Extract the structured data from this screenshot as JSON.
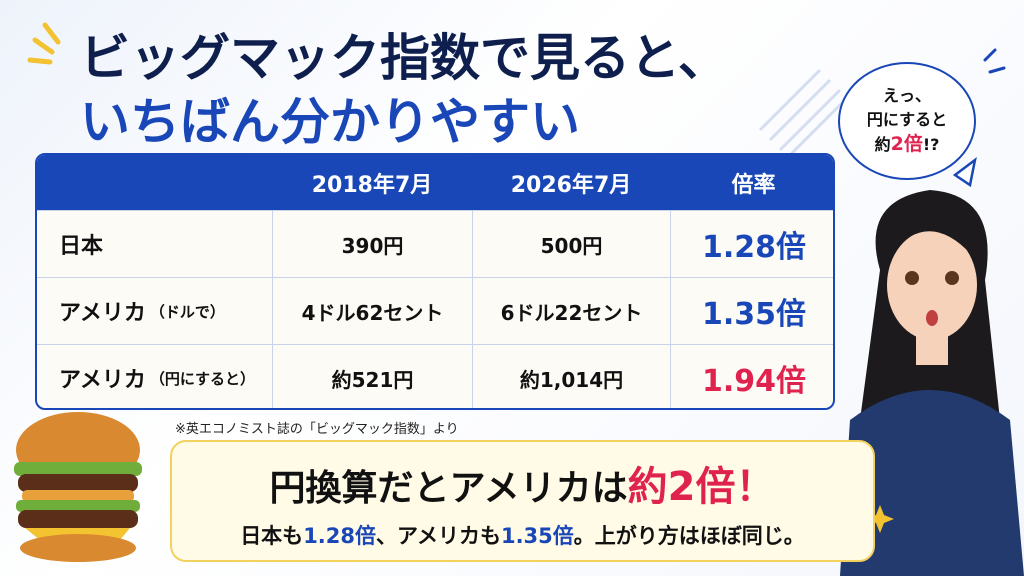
{
  "title": {
    "line1": "ビッグマック指数で見ると、",
    "line2": "いちばん分かりやすい"
  },
  "bubble": {
    "line1": "えっ、",
    "line2": "円にすると",
    "line3_prefix": "約",
    "line3_emph": "2倍",
    "line3_suffix": "!?"
  },
  "table": {
    "header": [
      "2018年7月",
      "2026年7月",
      "倍率"
    ],
    "rows": [
      {
        "label": "日本",
        "label_note": "",
        "cells": [
          "390円",
          "500円",
          "1.28倍"
        ]
      },
      {
        "label": "アメリカ",
        "label_note": "（ドルで）",
        "cells": [
          "4ドル62セント",
          "6ドル22セント",
          "1.35倍"
        ]
      },
      {
        "label": "アメリカ",
        "label_note": "（円にすると）",
        "cells": [
          "約521円",
          "約1,014円",
          "1.94倍"
        ]
      }
    ]
  },
  "source_note": "※英エコノミスト誌の「ビッグマック指数」より",
  "callout": {
    "headline": "円換算だとアメリカは",
    "headline_emph": "約2倍！",
    "sub": [
      "日本も",
      "1.28倍",
      "、アメリカも",
      "1.35倍",
      "。上がり方はほぼ同じ。"
    ]
  }
}
